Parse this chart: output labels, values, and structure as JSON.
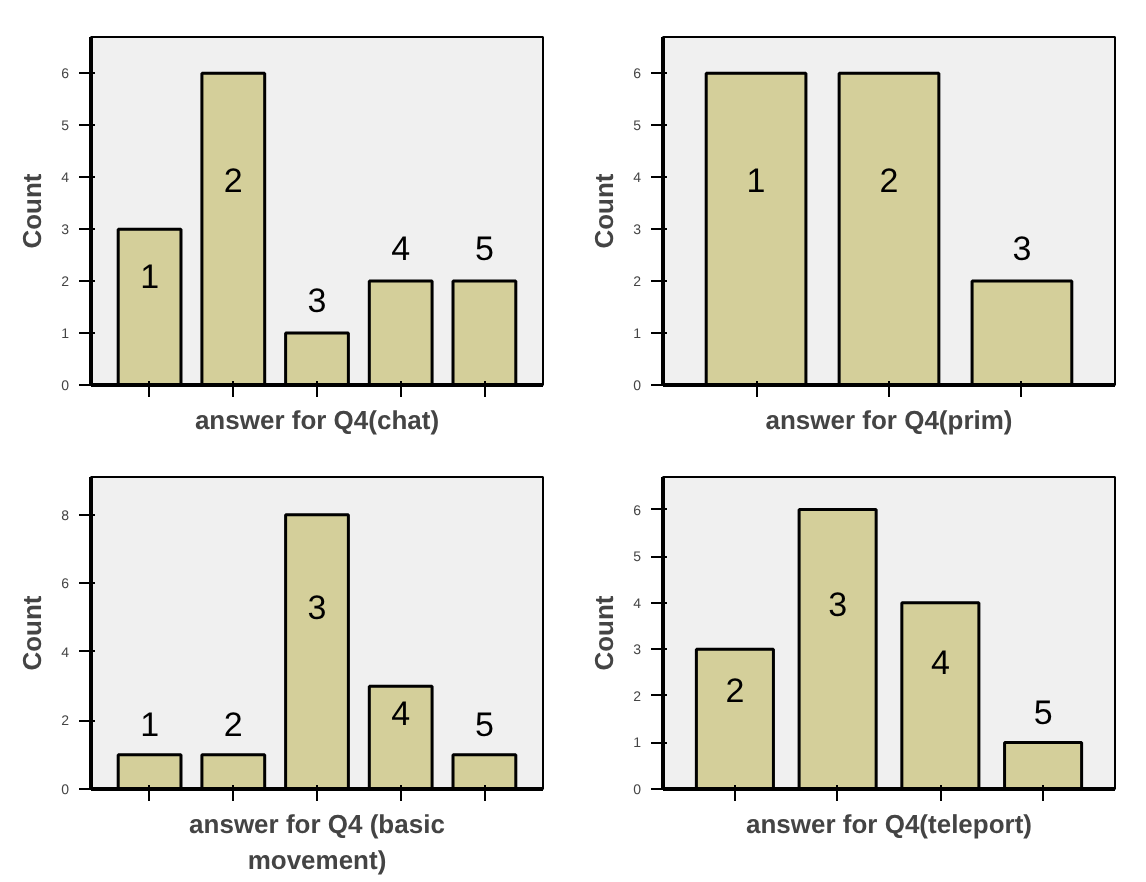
{
  "chart_data": [
    {
      "type": "bar",
      "xlabel": "answer for Q4(chat)",
      "ylabel": "Count",
      "categories": [
        "1",
        "2",
        "3",
        "4",
        "5"
      ],
      "values": [
        3,
        6,
        1,
        2,
        2
      ],
      "color": "#d4cf9a",
      "ylim": [
        0,
        6.7
      ],
      "yticks": [
        0,
        1,
        2,
        3,
        4,
        5,
        6
      ]
    },
    {
      "type": "bar",
      "xlabel": "answer for Q4(prim)",
      "ylabel": "Count",
      "categories": [
        "1",
        "2",
        "3"
      ],
      "values": [
        6,
        6,
        2
      ],
      "color": "#d4cf9a",
      "ylim": [
        0,
        6.7
      ],
      "yticks": [
        0,
        1,
        2,
        3,
        4,
        5,
        6
      ]
    },
    {
      "type": "bar",
      "xlabel": "answer for Q4 (basic movement)",
      "ylabel": "Count",
      "categories": [
        "1",
        "2",
        "3",
        "4",
        "5"
      ],
      "values": [
        1,
        1,
        8,
        3,
        1
      ],
      "color": "#d4cf9a",
      "ylim": [
        0,
        9.1
      ],
      "yticks": [
        0,
        2,
        4,
        6,
        8
      ]
    },
    {
      "type": "bar",
      "xlabel": "answer for Q4(teleport)",
      "ylabel": "Count",
      "categories": [
        "2",
        "3",
        "4",
        "5"
      ],
      "values": [
        3,
        6,
        4,
        1
      ],
      "color": "#d4cf9a",
      "ylim": [
        0,
        6.7
      ],
      "yticks": [
        0,
        1,
        2,
        3,
        4,
        5,
        6
      ]
    }
  ]
}
